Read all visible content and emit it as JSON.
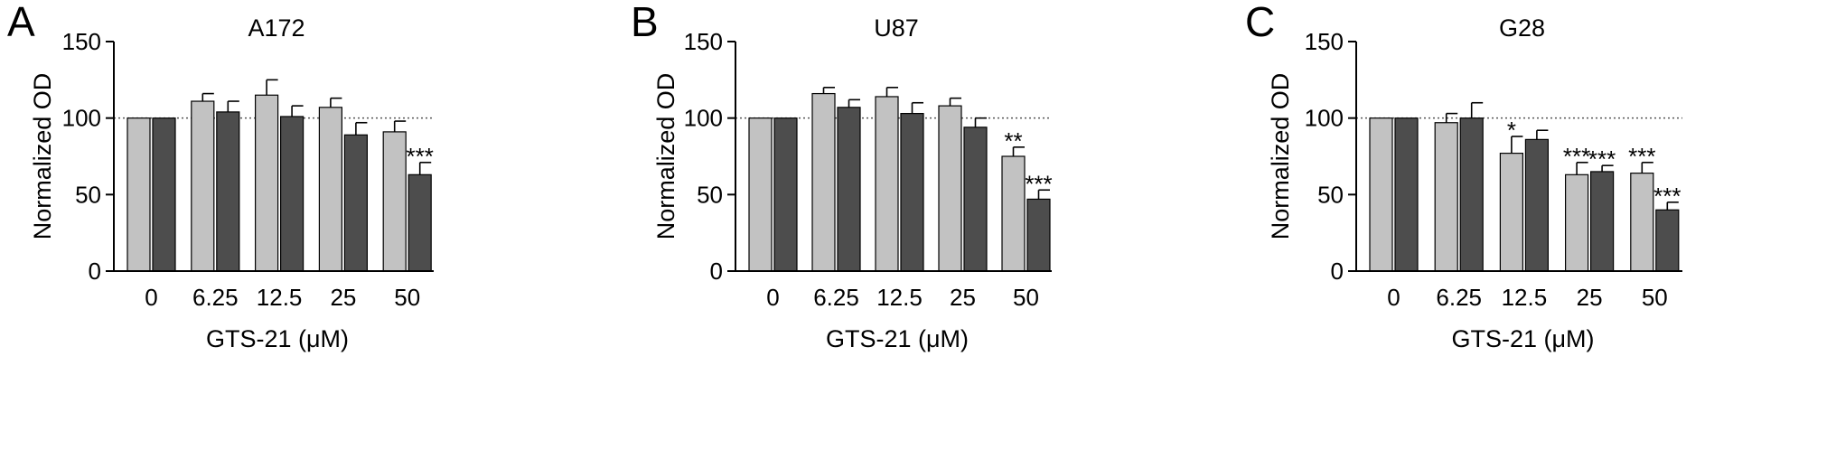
{
  "colors": {
    "light": "#c2c2c2",
    "dark": "#4d4d4d",
    "stroke": "#000000",
    "reference": "#555555"
  },
  "chart_data": [
    {
      "type": "bar",
      "panel": "A",
      "title": "A172",
      "xlabel": "GTS-21 (μM)",
      "ylabel": "Normalized OD",
      "categories": [
        "0",
        "6.25",
        "12.5",
        "25",
        "50"
      ],
      "ylim": [
        0,
        150
      ],
      "yticks": [
        "0",
        "50",
        "100",
        "150"
      ],
      "reference_line": 100,
      "series": [
        {
          "values": [
            100,
            111,
            115,
            107,
            91
          ],
          "errors": [
            0,
            5,
            10,
            6,
            7
          ],
          "sig": [
            "",
            "",
            "",
            "",
            ""
          ]
        },
        {
          "values": [
            100,
            104,
            101,
            89,
            63
          ],
          "errors": [
            0,
            7,
            7,
            8,
            8
          ],
          "sig": [
            "",
            "",
            "",
            "",
            "***"
          ]
        }
      ]
    },
    {
      "type": "bar",
      "panel": "B",
      "title": "U87",
      "xlabel": "GTS-21 (μM)",
      "ylabel": "Normalized OD",
      "categories": [
        "0",
        "6.25",
        "12.5",
        "25",
        "50"
      ],
      "ylim": [
        0,
        150
      ],
      "yticks": [
        "0",
        "50",
        "100",
        "150"
      ],
      "reference_line": 100,
      "series": [
        {
          "values": [
            100,
            116,
            114,
            108,
            75
          ],
          "errors": [
            0,
            4,
            6,
            5,
            6
          ],
          "sig": [
            "",
            "",
            "",
            "",
            "**"
          ]
        },
        {
          "values": [
            100,
            107,
            103,
            94,
            47
          ],
          "errors": [
            0,
            5,
            7,
            6,
            6
          ],
          "sig": [
            "",
            "",
            "",
            "",
            "***"
          ]
        }
      ]
    },
    {
      "type": "bar",
      "panel": "C",
      "title": "G28",
      "xlabel": "GTS-21 (μM)",
      "ylabel": "Normalized OD",
      "categories": [
        "0",
        "6.25",
        "12.5",
        "25",
        "50"
      ],
      "ylim": [
        0,
        150
      ],
      "yticks": [
        "0",
        "50",
        "100",
        "150"
      ],
      "reference_line": 100,
      "series": [
        {
          "values": [
            100,
            97,
            77,
            63,
            64
          ],
          "errors": [
            0,
            6,
            11,
            8,
            7
          ],
          "sig": [
            "",
            "",
            "*",
            "***",
            "***"
          ]
        },
        {
          "values": [
            100,
            100,
            86,
            65,
            40
          ],
          "errors": [
            0,
            10,
            6,
            4,
            5
          ],
          "sig": [
            "",
            "",
            "",
            "***",
            "***"
          ]
        }
      ]
    }
  ]
}
